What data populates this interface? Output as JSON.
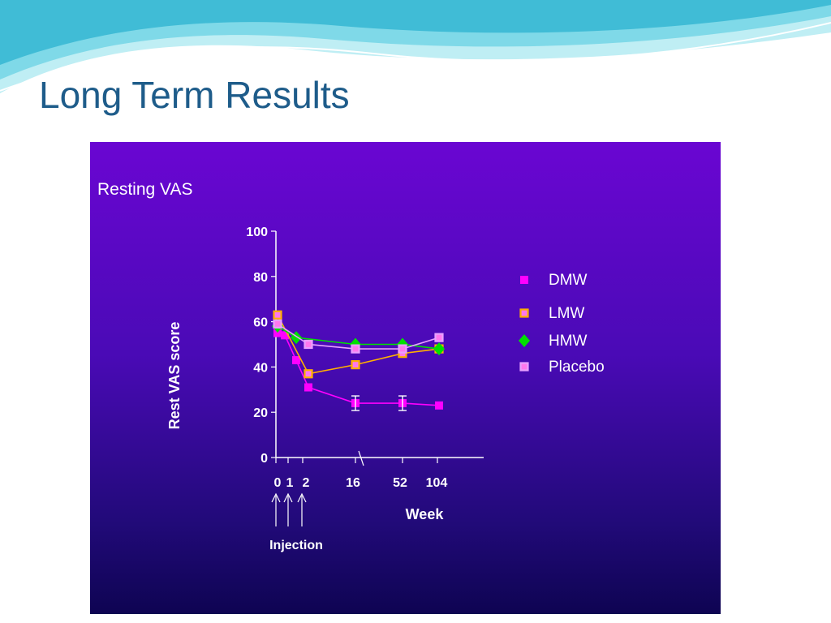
{
  "slide": {
    "title": "Long Term Results"
  },
  "colors": {
    "title": "#1e5c8a",
    "panel_top": "#6a06d2",
    "panel_bottom": "#0e0452",
    "dmw": "#ff00ff",
    "lmw": "#ffb000",
    "hmw": "#00e000",
    "placebo": "#e8a0ff"
  },
  "chart_data": {
    "type": "line",
    "title": "Resting VAS",
    "ylabel": "Rest VAS score",
    "xlabel": "Week",
    "ylim": [
      0,
      100
    ],
    "yticks": [
      "0",
      "20",
      "40",
      "60",
      "80",
      "100"
    ],
    "xticks": [
      "0",
      "1",
      "2",
      "16",
      "52",
      "104"
    ],
    "annotation": "Injection",
    "legend_position": "right",
    "series": [
      {
        "name": "DMW",
        "marker": "square",
        "color": "#ff00ff",
        "x": [
          "0",
          "0.5",
          "1",
          "2",
          "16",
          "52",
          "104"
        ],
        "values": [
          55,
          54,
          43,
          31,
          24,
          24,
          23
        ]
      },
      {
        "name": "LMW",
        "marker": "square-outline",
        "color": "#ffb000",
        "x": [
          "0",
          "2",
          "16",
          "52",
          "104"
        ],
        "values": [
          63,
          37,
          41,
          46,
          48
        ]
      },
      {
        "name": "HMW",
        "marker": "diamond",
        "color": "#00e000",
        "x": [
          "0",
          "1",
          "16",
          "52",
          "104"
        ],
        "values": [
          58,
          53,
          50,
          50,
          48
        ]
      },
      {
        "name": "Placebo",
        "marker": "square-outline",
        "color": "#e8a0ff",
        "x": [
          "0",
          "2",
          "16",
          "52",
          "104"
        ],
        "values": [
          59,
          50,
          48,
          48,
          53
        ]
      }
    ]
  }
}
